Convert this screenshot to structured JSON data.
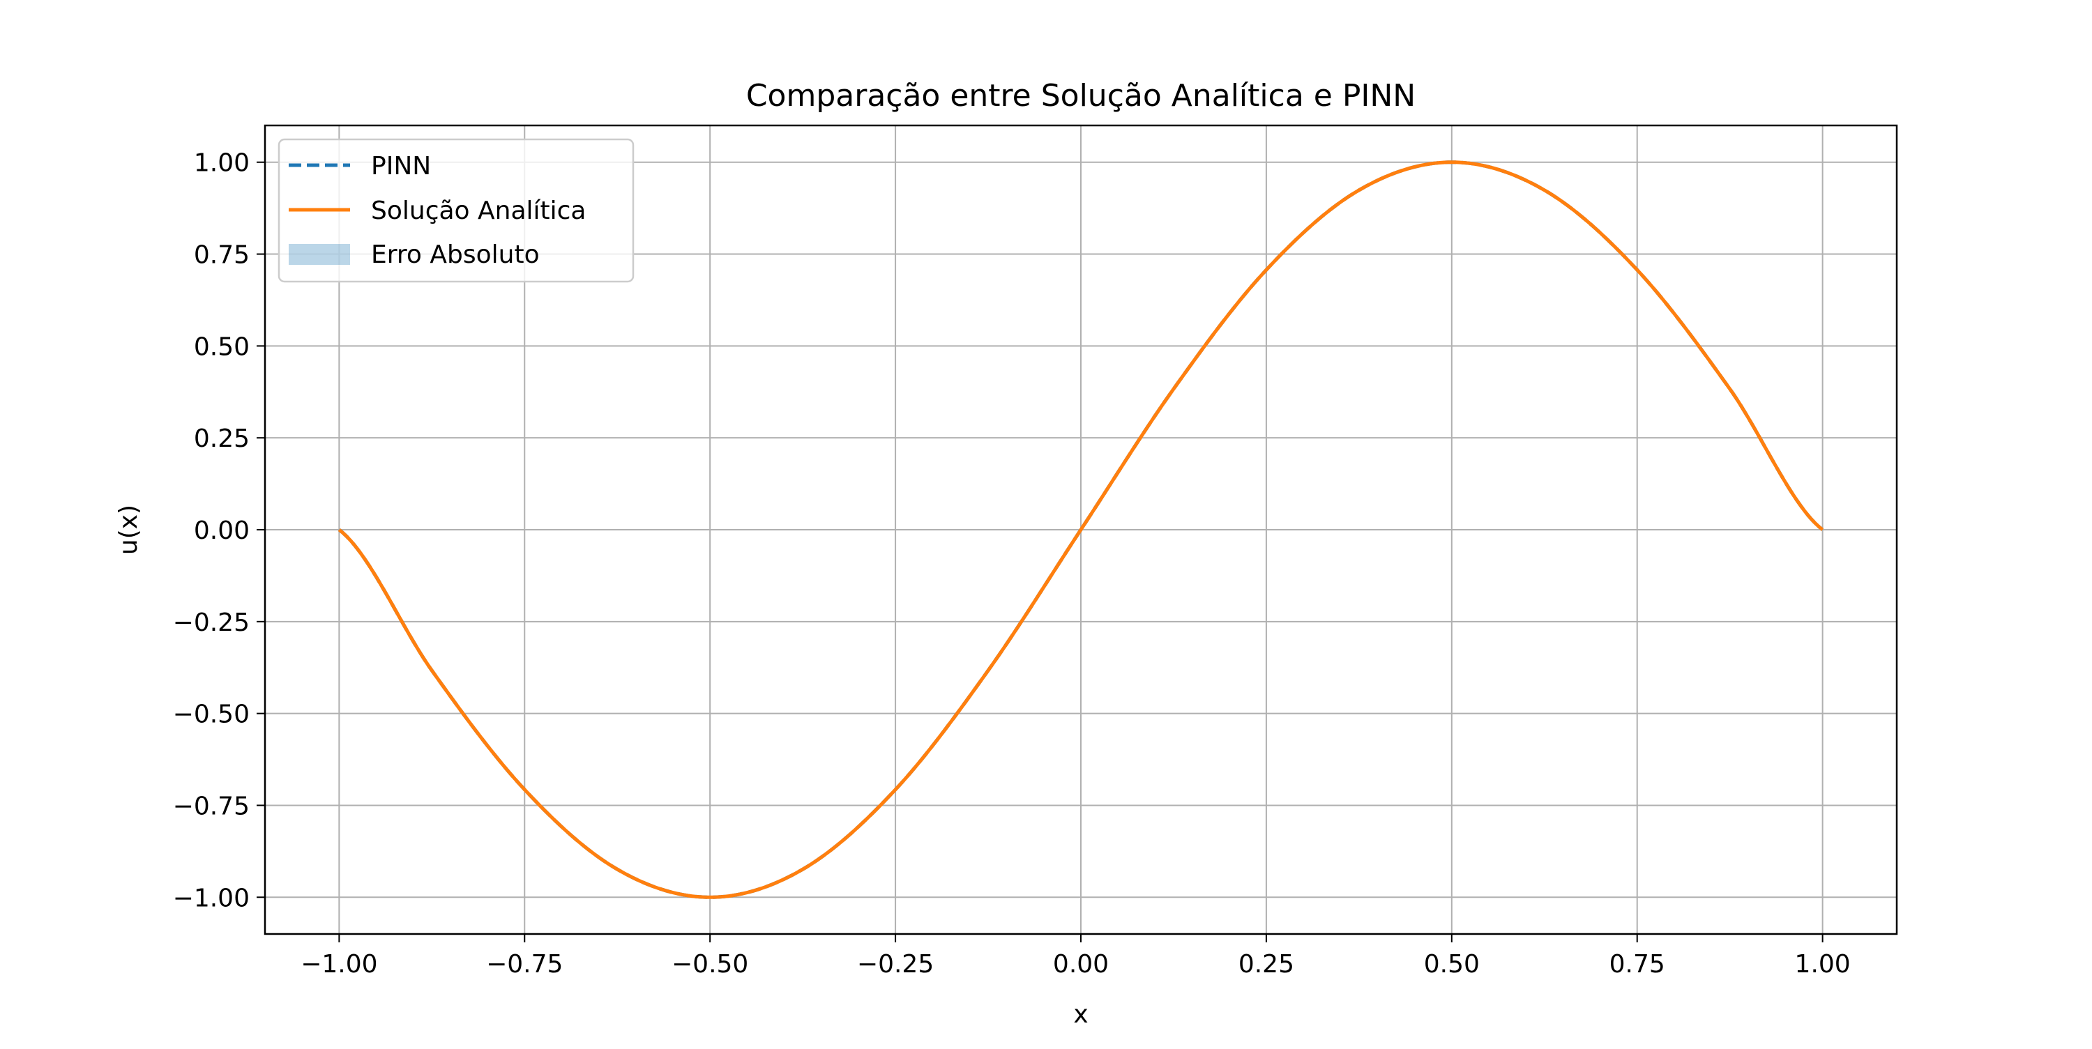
{
  "chart_data": {
    "type": "line",
    "title": "Comparação entre Solução Analítica e PINN",
    "xlabel": "x",
    "ylabel": "u(x)",
    "xlim": [
      -1.1,
      1.1
    ],
    "ylim": [
      -1.1,
      1.1
    ],
    "xticks": [
      -1.0,
      -0.75,
      -0.5,
      -0.25,
      0.0,
      0.25,
      0.5,
      0.75,
      1.0
    ],
    "yticks": [
      -1.0,
      -0.75,
      -0.5,
      -0.25,
      0.0,
      0.25,
      0.5,
      0.75,
      1.0
    ],
    "xtick_labels": [
      "−1.00",
      "−0.75",
      "−0.50",
      "−0.25",
      "0.00",
      "0.25",
      "0.50",
      "0.75",
      "1.00"
    ],
    "ytick_labels": [
      "−1.00",
      "−0.75",
      "−0.50",
      "−0.25",
      "0.00",
      "0.25",
      "0.50",
      "0.75",
      "1.00"
    ],
    "grid": true,
    "legend_position": "upper-left",
    "series": [
      {
        "name": "PINN",
        "style": "dashed",
        "color": "#1f77b4",
        "x": [
          -1.0,
          -0.875,
          -0.75,
          -0.625,
          -0.5,
          -0.375,
          -0.25,
          -0.125,
          0.0,
          0.125,
          0.25,
          0.375,
          0.5,
          0.625,
          0.75,
          0.875,
          1.0
        ],
        "y": [
          0.0,
          -0.383,
          -0.707,
          -0.924,
          -1.0,
          -0.924,
          -0.707,
          -0.383,
          0.0,
          0.383,
          0.707,
          0.924,
          1.0,
          0.924,
          0.707,
          0.383,
          0.0
        ]
      },
      {
        "name": "Solução Analítica",
        "style": "solid",
        "color": "#ff7f0e",
        "x": [
          -1.0,
          -0.875,
          -0.75,
          -0.625,
          -0.5,
          -0.375,
          -0.25,
          -0.125,
          0.0,
          0.125,
          0.25,
          0.375,
          0.5,
          0.625,
          0.75,
          0.875,
          1.0
        ],
        "y": [
          0.0,
          -0.383,
          -0.707,
          -0.924,
          -1.0,
          -0.924,
          -0.707,
          -0.383,
          0.0,
          0.383,
          0.707,
          0.924,
          1.0,
          0.924,
          0.707,
          0.383,
          0.0
        ]
      },
      {
        "name": "Erro Absoluto",
        "style": "fill",
        "color": "#1f77b4",
        "x": [
          -1.0,
          -0.5,
          0.0,
          0.5,
          1.0
        ],
        "y": [
          0.0,
          0.0,
          0.0,
          0.0,
          0.0
        ]
      }
    ]
  }
}
